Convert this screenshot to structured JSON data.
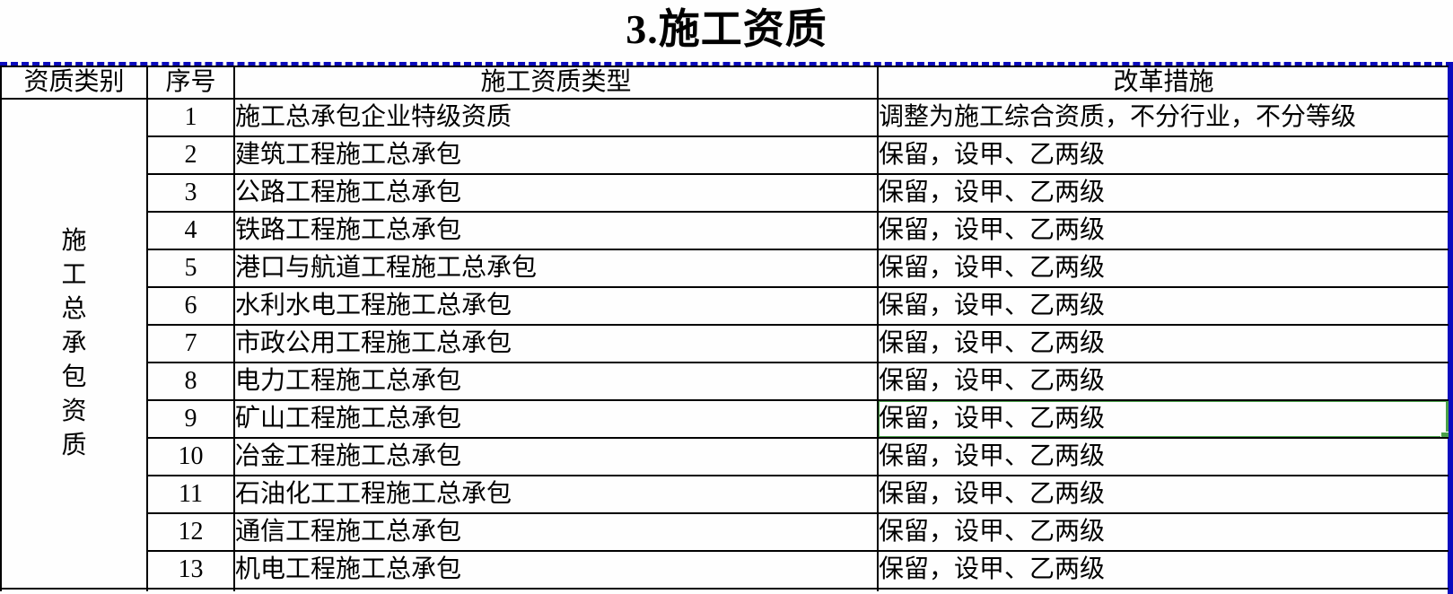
{
  "title": "3.施工资质",
  "table": {
    "headers": {
      "category": "资质类别",
      "no": "序号",
      "type": "施工资质类型",
      "measure": "改革措施"
    },
    "category_group": "施工总承包资质",
    "rows": [
      {
        "no": "1",
        "type": "施工总承包企业特级资质",
        "measure": "调整为施工综合资质，不分行业，不分等级"
      },
      {
        "no": "2",
        "type": "建筑工程施工总承包",
        "measure": "保留，设甲、乙两级"
      },
      {
        "no": "3",
        "type": "公路工程施工总承包",
        "measure": "保留，设甲、乙两级"
      },
      {
        "no": "4",
        "type": "铁路工程施工总承包",
        "measure": "保留，设甲、乙两级"
      },
      {
        "no": "5",
        "type": "港口与航道工程施工总承包",
        "measure": "保留，设甲、乙两级"
      },
      {
        "no": "6",
        "type": "水利水电工程施工总承包",
        "measure": "保留，设甲、乙两级"
      },
      {
        "no": "7",
        "type": "市政公用工程施工总承包",
        "measure": "保留，设甲、乙两级"
      },
      {
        "no": "8",
        "type": "电力工程施工总承包",
        "measure": "保留，设甲、乙两级"
      },
      {
        "no": "9",
        "type": "矿山工程施工总承包",
        "measure": "保留，设甲、乙两级"
      },
      {
        "no": "10",
        "type": "冶金工程施工总承包",
        "measure": "保留，设甲、乙两级"
      },
      {
        "no": "11",
        "type": "石油化工工程施工总承包",
        "measure": "保留，设甲、乙两级"
      },
      {
        "no": "12",
        "type": "通信工程施工总承包",
        "measure": "保留，设甲、乙两级"
      },
      {
        "no": "13",
        "type": "机电工程施工总承包",
        "measure": "保留，设甲、乙两级"
      }
    ]
  },
  "selection": {
    "row_no": "9",
    "column": "measure"
  },
  "colors": {
    "selection_green": "#4aa04a",
    "page_break_blue": "#0b0bbe",
    "grid_line": "#000000"
  }
}
